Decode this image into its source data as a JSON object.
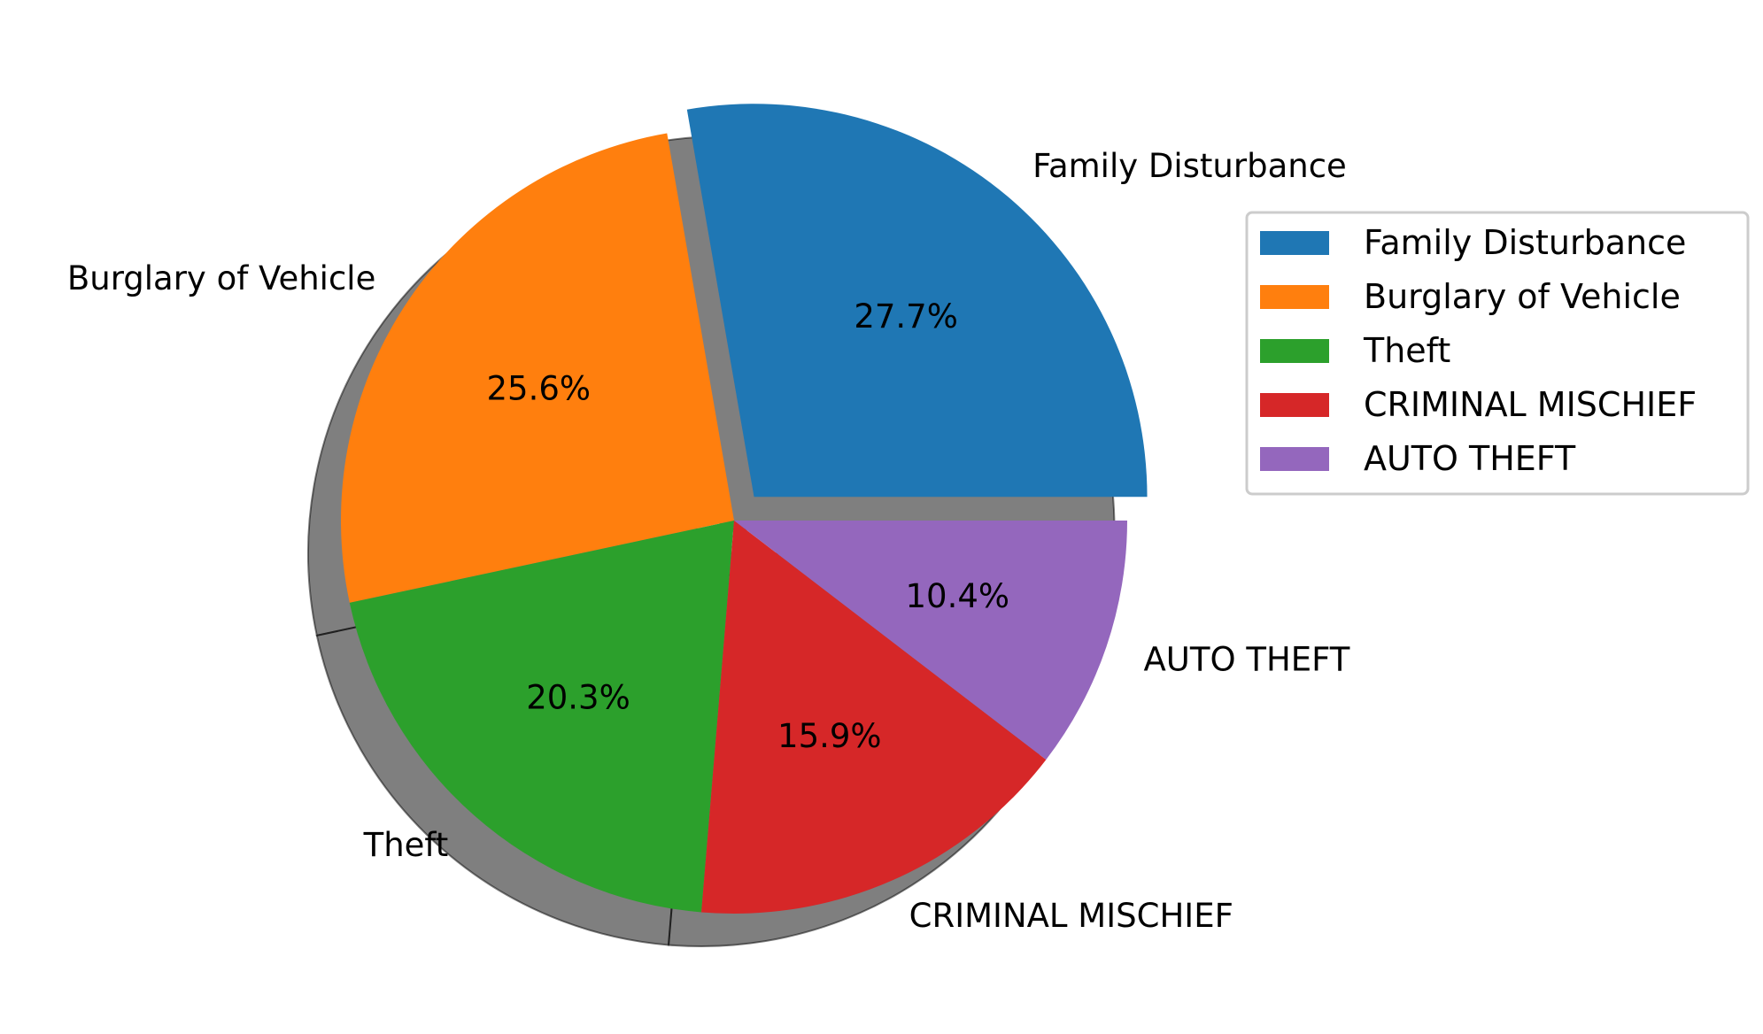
{
  "chart_data": {
    "type": "pie",
    "categories": [
      "Family Disturbance",
      "Burglary of Vehicle",
      "Theft",
      "CRIMINAL MISCHIEF",
      "AUTO THEFT"
    ],
    "values": [
      27.7,
      25.6,
      20.3,
      15.9,
      10.4
    ],
    "value_labels": [
      "27.7%",
      "25.6%",
      "20.3%",
      "15.9%",
      "10.4%"
    ],
    "colors": [
      "#1f77b4",
      "#ff7f0e",
      "#2ca02c",
      "#d62728",
      "#9467bd"
    ],
    "exploded": [
      true,
      false,
      false,
      false,
      false
    ],
    "start_angle_deg": 0,
    "direction": "counterclockwise",
    "shadow": true,
    "legend": {
      "placement": "right",
      "entries": [
        "Family Disturbance",
        "Burglary of Vehicle",
        "Theft",
        "CRIMINAL MISCHIEF",
        "AUTO THEFT"
      ]
    }
  }
}
